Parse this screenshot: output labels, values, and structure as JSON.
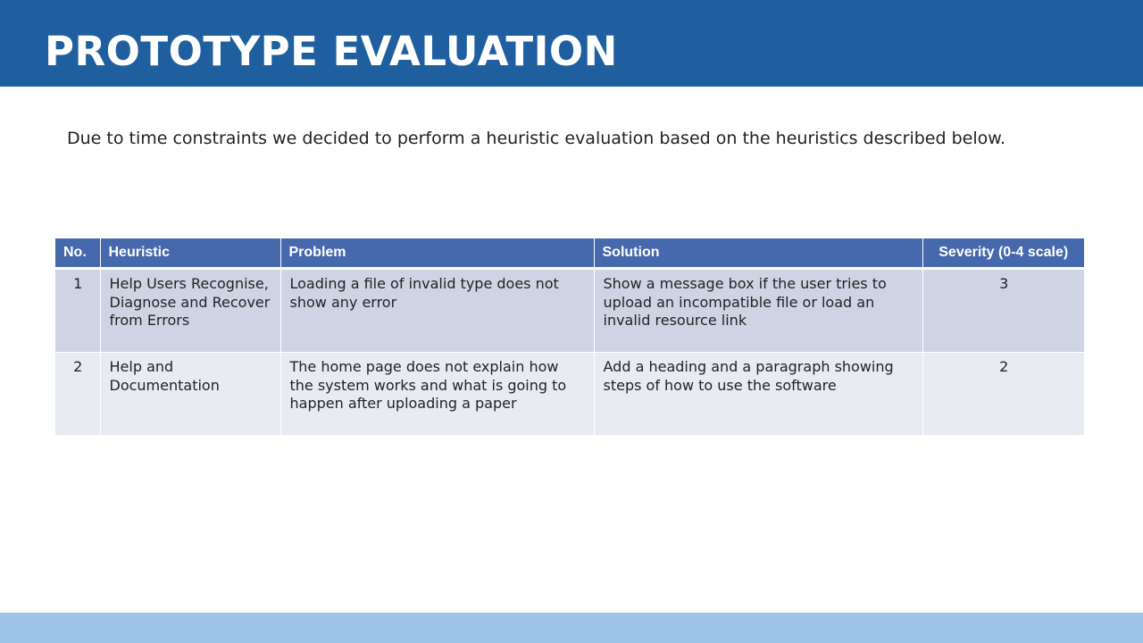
{
  "header": {
    "title": "PROTOTYPE EVALUATION",
    "background_color": "#1f5fa0"
  },
  "intro": {
    "text": "Due to time constraints we decided to perform a heuristic evaluation based on the heuristics described below."
  },
  "table": {
    "columns": [
      "No.",
      "Heuristic",
      "Problem",
      "Solution",
      "Severity (0-4 scale)"
    ],
    "rows": [
      {
        "no": "1",
        "heuristic": "Help Users Recognise, Diagnose and Recover from Errors",
        "problem": "Loading a file of invalid type does not show any error",
        "solution": "Show a message box if the user tries to upload an incompatible file or load an invalid resource link",
        "severity": "3"
      },
      {
        "no": "2",
        "heuristic": "Help and Documentation",
        "problem": "The home page does not explain how the system works and what is going to happen after uploading a paper",
        "solution": "Add a heading and a paragraph showing steps of how to use the software",
        "severity": "2"
      }
    ],
    "header_color": "#4668ad",
    "row_colors": [
      "#cfd4e5",
      "#e8ebf2"
    ]
  },
  "footer": {
    "background_color": "#9dc3e6"
  }
}
